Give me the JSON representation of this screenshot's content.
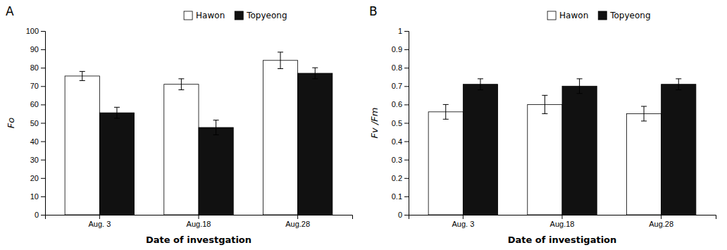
{
  "chart_data": [
    {
      "type": "bar",
      "title": "A",
      "categories": [
        "Aug. 3",
        "Aug.18",
        "Aug.28"
      ],
      "series": [
        {
          "name": "Hawon",
          "color": "#ffffff",
          "values": [
            75.5,
            71.0,
            84.0
          ],
          "errors": [
            2.5,
            3.0,
            4.5
          ]
        },
        {
          "name": "Topyeong",
          "color": "#111111",
          "values": [
            55.5,
            47.5,
            77.0
          ],
          "errors": [
            3.0,
            4.0,
            3.0
          ]
        }
      ],
      "xlabel": "Date of investgation",
      "ylabel": "Fo",
      "ylim": [
        0,
        100
      ],
      "yticks": [
        0,
        10,
        20,
        30,
        40,
        50,
        60,
        70,
        80,
        90,
        100
      ],
      "legend": "top"
    },
    {
      "type": "bar",
      "title": "B",
      "categories": [
        "Aug. 3",
        "Aug.18",
        "Aug.28"
      ],
      "series": [
        {
          "name": "Hawon",
          "color": "#ffffff",
          "values": [
            0.56,
            0.6,
            0.55
          ],
          "errors": [
            0.04,
            0.05,
            0.04
          ]
        },
        {
          "name": "Topyeong",
          "color": "#111111",
          "values": [
            0.71,
            0.7,
            0.71
          ],
          "errors": [
            0.03,
            0.04,
            0.03
          ]
        }
      ],
      "xlabel": "Date of investigation",
      "ylabel": "Fv /Fm",
      "ylim": [
        0,
        1.0
      ],
      "yticks": [
        0,
        0.1,
        0.2,
        0.3,
        0.4,
        0.5,
        0.6,
        0.7,
        0.8,
        0.9,
        1
      ],
      "legend": "top"
    }
  ]
}
